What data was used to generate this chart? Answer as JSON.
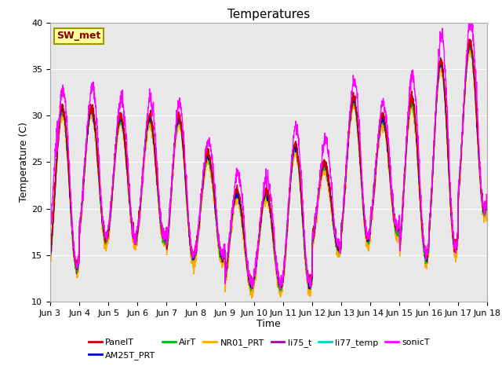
{
  "title": "Temperatures",
  "xlabel": "Time",
  "ylabel": "Temperature (C)",
  "ylim": [
    10,
    40
  ],
  "x_tick_labels": [
    "Jun 3",
    "Jun 4",
    "Jun 5",
    "Jun 6",
    "Jun 7",
    "Jun 8",
    "Jun 9",
    "Jun 10",
    "Jun 11",
    "Jun 12",
    "Jun 13",
    "Jun 14",
    "Jun 15",
    "Jun 16",
    "Jun 17",
    "Jun 18"
  ],
  "series_colors": {
    "PanelT": "#cc0000",
    "AM25T_PRT": "#0000cc",
    "AirT": "#00bb00",
    "NR01_PRT": "#ffaa00",
    "li75_t": "#aa00aa",
    "li77_temp": "#00cccc",
    "sonicT": "#ff00ff"
  },
  "legend_label": "SW_met",
  "legend_box_color": "#ffff99",
  "legend_box_edge": "#999900",
  "legend_text_color": "#880000",
  "plot_bg_color": "#e8e8e8",
  "grid_color": "#ffffff",
  "title_fontsize": 11,
  "axis_label_fontsize": 9,
  "tick_fontsize": 8,
  "legend_fontsize": 8,
  "n_days": 15,
  "pts_per_day": 144,
  "daily_maxes": [
    31,
    31,
    30,
    30,
    30,
    26,
    22,
    22,
    27,
    25,
    32,
    30,
    32,
    36,
    38
  ],
  "daily_mins": [
    14,
    17,
    17,
    17,
    15,
    15,
    12,
    12,
    12,
    16,
    17,
    18,
    15,
    16,
    20
  ],
  "sonic_extra_day_offsets": [
    2.0,
    2.5,
    2.0,
    2.0,
    1.5,
    1.5,
    2.0,
    1.5,
    2.0,
    2.5,
    2.0,
    1.5,
    2.5,
    3.0,
    2.5
  ],
  "random_seed": 12345
}
